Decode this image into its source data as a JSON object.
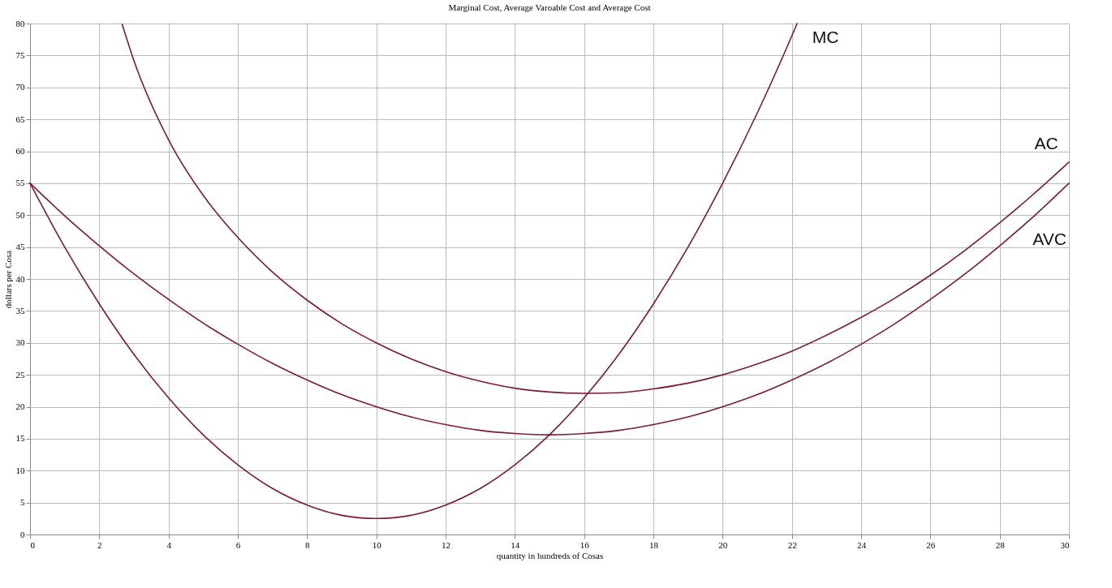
{
  "chart_data": {
    "type": "line",
    "title": "Marginal Cost, Average Varoable Cost and Average Cost",
    "xlabel": "quantity in hundreds of Cosas",
    "ylabel": "dollars per Cosa",
    "xlim": [
      0,
      30
    ],
    "ylim": [
      0,
      80
    ],
    "xticks": [
      0,
      2,
      4,
      6,
      8,
      10,
      12,
      14,
      16,
      18,
      20,
      22,
      24,
      26,
      28,
      30
    ],
    "yticks": [
      0,
      5,
      10,
      15,
      20,
      25,
      30,
      35,
      40,
      45,
      50,
      55,
      60,
      65,
      70,
      75,
      80
    ],
    "grid": true,
    "legend": false,
    "marker": "none",
    "line_style": "solid",
    "series": [
      {
        "name": "MC",
        "color": "#7a1c2c",
        "x": [
          0,
          1,
          2,
          3,
          4,
          5,
          6,
          7,
          8,
          9,
          10,
          11,
          12,
          13,
          14,
          15,
          16,
          17,
          18,
          19,
          20,
          21,
          22,
          22.15
        ],
        "values": [
          55,
          45.0,
          36.1,
          28.2,
          21.4,
          15.6,
          10.9,
          7.2,
          4.6,
          3.0,
          2.5,
          3.0,
          4.6,
          7.2,
          10.9,
          15.6,
          21.4,
          28.2,
          36.1,
          45.0,
          55,
          66.0,
          78.1,
          80
        ]
      },
      {
        "name": "AC",
        "color": "#7a1c2c",
        "x": [
          2.66,
          3,
          4,
          5,
          6,
          7,
          8,
          9,
          10,
          11,
          12,
          13,
          14,
          15,
          16,
          17,
          18,
          19,
          20,
          21,
          22,
          23,
          24,
          25,
          26,
          27,
          28,
          29,
          30
        ],
        "values": [
          79.9,
          74.2,
          61.8,
          53.1,
          46.5,
          41.1,
          36.7,
          33.0,
          30,
          27.5,
          25.5,
          24.0,
          22.9,
          22.3,
          22.1,
          22.2,
          22.8,
          23.7,
          25,
          26.7,
          28.7,
          31.2,
          34.0,
          37.1,
          40.6,
          44.5,
          48.8,
          53.4,
          58.3
        ]
      },
      {
        "name": "AVC",
        "color": "#7a1c2c",
        "x": [
          0,
          1,
          2,
          3,
          4,
          5,
          6,
          7,
          8,
          9,
          10,
          11,
          12,
          13,
          14,
          15,
          16,
          17,
          18,
          19,
          20,
          21,
          22,
          23,
          24,
          25,
          26,
          27,
          28,
          29,
          30
        ],
        "values": [
          55,
          49.9,
          45.2,
          40.8,
          36.8,
          33.1,
          29.8,
          26.8,
          24.2,
          21.9,
          20,
          18.4,
          17.2,
          16.3,
          15.8,
          15.6,
          15.8,
          16.3,
          17.2,
          18.4,
          20,
          21.9,
          24.2,
          26.8,
          29.8,
          33.1,
          36.8,
          40.8,
          45.2,
          49.9,
          55
        ]
      }
    ]
  }
}
